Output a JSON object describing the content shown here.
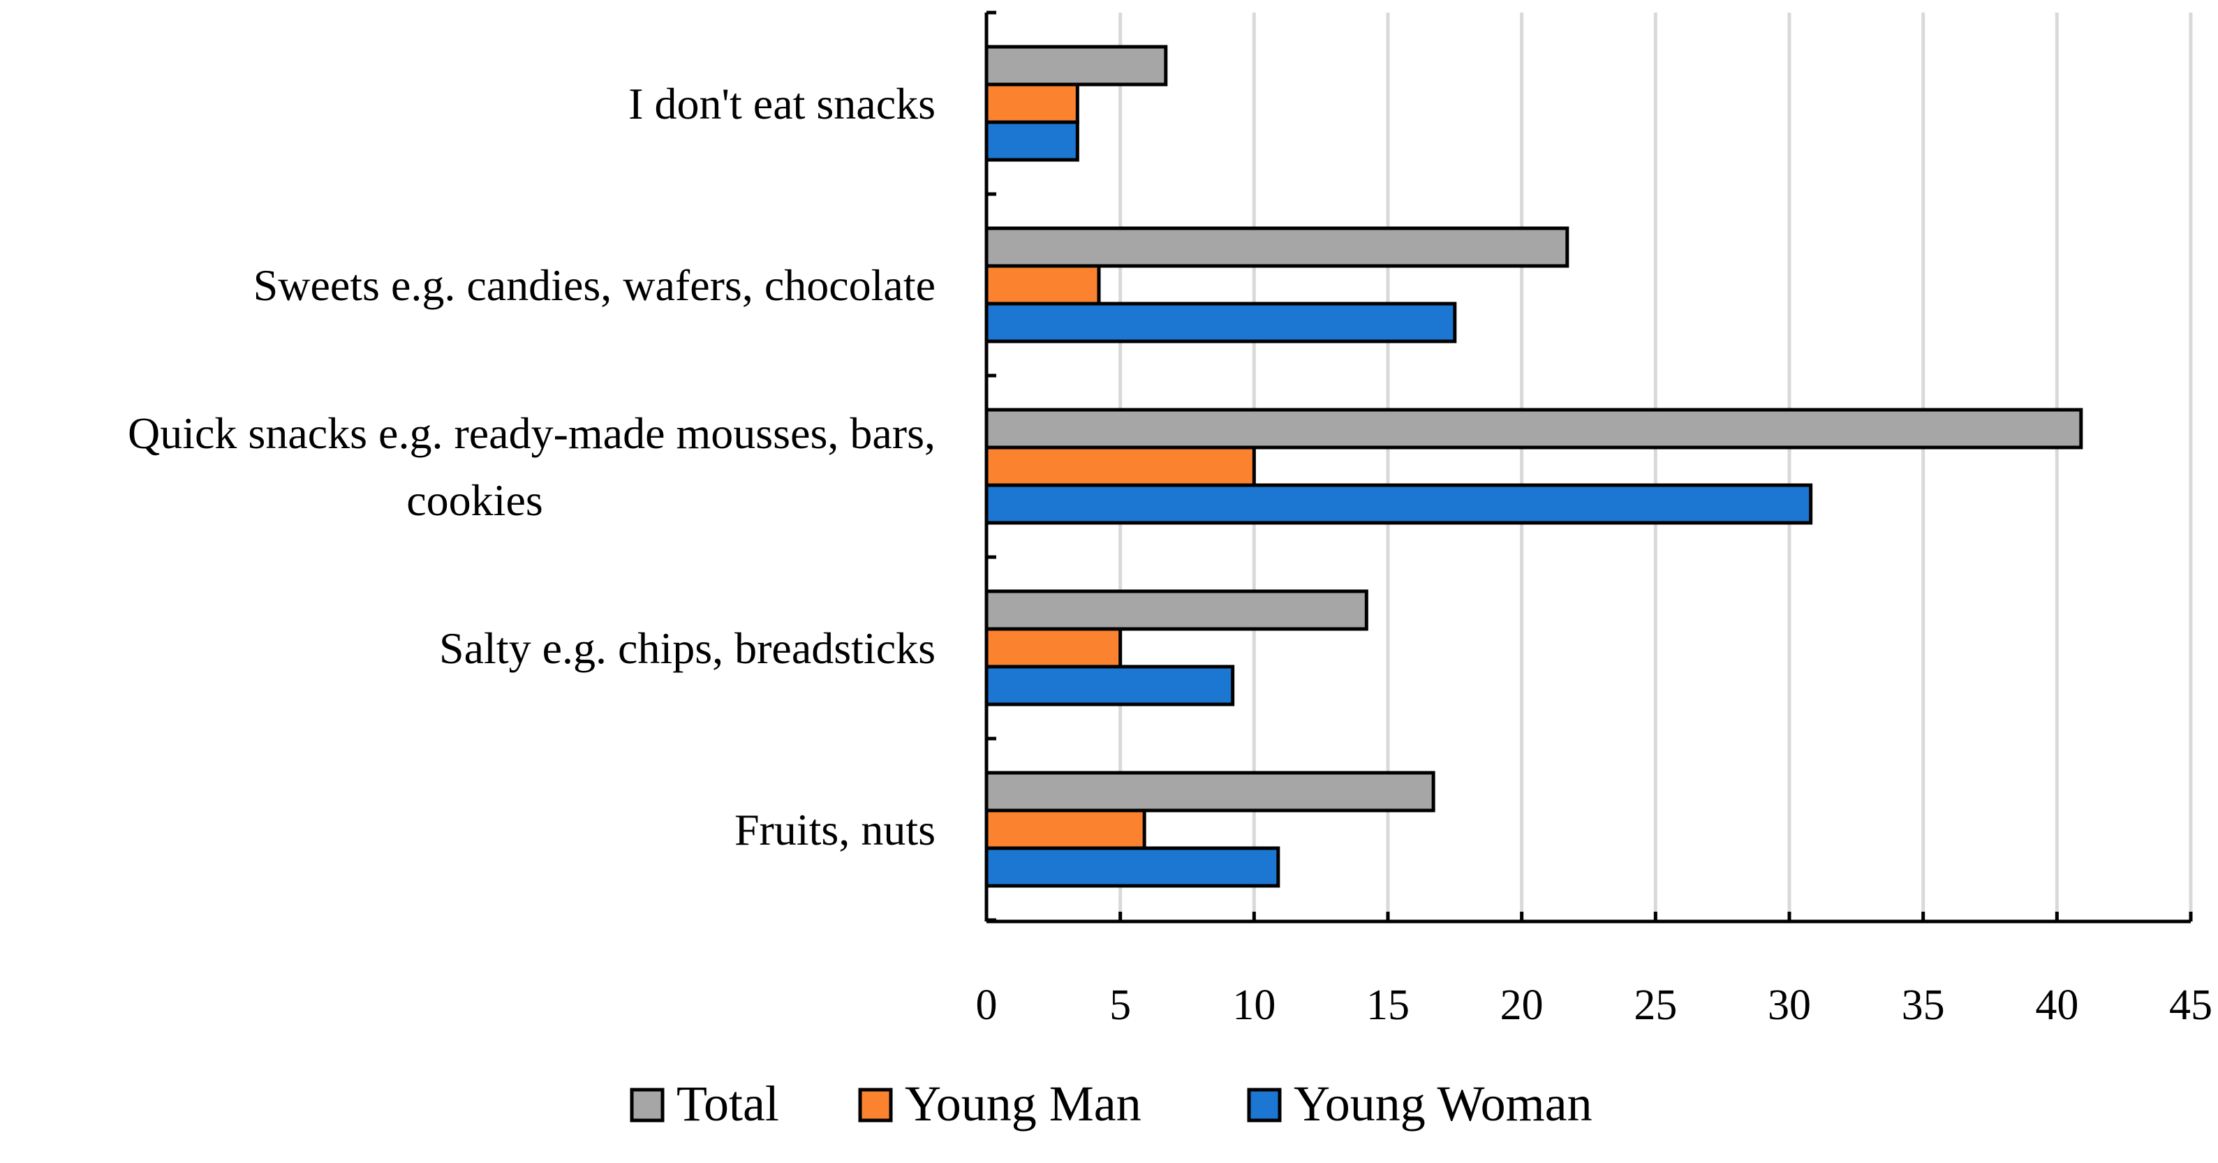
{
  "chart_data": {
    "type": "bar",
    "orientation": "horizontal",
    "title": "",
    "xlabel": "",
    "ylabel": "",
    "categories": [
      [
        "I don't eat snacks"
      ],
      [
        "Sweets e.g. candies, wafers, chocolate"
      ],
      [
        "Quick snacks e.g. ready-made mousses, bars,",
        "cookies"
      ],
      [
        "Salty e.g. chips, breadsticks"
      ],
      [
        "Fruits, nuts"
      ]
    ],
    "series": [
      {
        "name": "Total",
        "color": "#a6a6a6",
        "values": [
          6.7,
          21.7,
          40.9,
          14.2,
          16.7
        ]
      },
      {
        "name": "Young Man",
        "color": "#fb8330",
        "values": [
          3.4,
          4.2,
          10.0,
          5.0,
          5.9
        ]
      },
      {
        "name": "Young Woman",
        "color": "#1b77d1",
        "values": [
          3.4,
          17.5,
          30.8,
          9.2,
          10.9
        ]
      }
    ],
    "xlim": [
      0,
      45
    ],
    "xticks": [
      0,
      5,
      10,
      15,
      20,
      25,
      30,
      35,
      40,
      45
    ],
    "grid": "vertical",
    "legend": "bottom"
  }
}
